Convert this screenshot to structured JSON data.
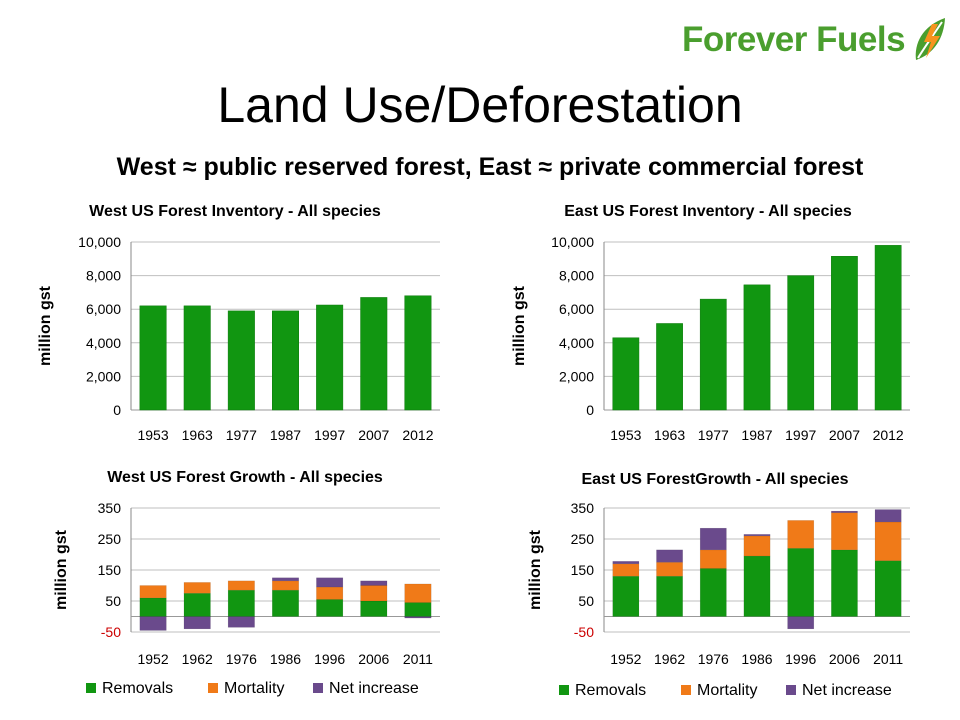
{
  "slide": {
    "logo_text": "Forever Fuels",
    "title": "Land Use/Deforestation",
    "subtitle": "West ≈ public reserved forest, East ≈ private commercial forest"
  },
  "colors": {
    "removals": "#119611",
    "mortality": "#f07a18",
    "net_increase": "#6a4a8c",
    "inventory_bar": "#119611",
    "grid": "#bfbfbf",
    "negative_tick": "#cc0000",
    "logo": "#4a9e2e"
  },
  "chart_data": [
    {
      "id": "west-inventory",
      "type": "bar",
      "title": "West US Forest Inventory - All species",
      "ylabel": "million gst",
      "xlabel": "",
      "ylim": [
        0,
        10000
      ],
      "yticks": [
        "0",
        "2,000",
        "4,000",
        "6,000",
        "8,000",
        "10,000"
      ],
      "categories": [
        "1953",
        "1963",
        "1977",
        "1987",
        "1997",
        "2007",
        "2012"
      ],
      "values": [
        6200,
        6200,
        5900,
        5900,
        6250,
        6700,
        6800
      ],
      "grid": true
    },
    {
      "id": "east-inventory",
      "type": "bar",
      "title": "East US Forest Inventory - All species",
      "ylabel": "million gst",
      "xlabel": "",
      "ylim": [
        0,
        10000
      ],
      "yticks": [
        "0",
        "2,000",
        "4,000",
        "6,000",
        "8,000",
        "10,000"
      ],
      "categories": [
        "1953",
        "1963",
        "1977",
        "1987",
        "1997",
        "2007",
        "2012"
      ],
      "values": [
        4300,
        5150,
        6600,
        7450,
        8000,
        9150,
        9800
      ],
      "grid": true
    },
    {
      "id": "west-growth",
      "type": "bar",
      "stacked": true,
      "title": "West US Forest Growth - All species",
      "ylabel": "million gst",
      "xlabel": "",
      "ylim": [
        -50,
        350
      ],
      "yticks": [
        "-50",
        "50",
        "150",
        "250",
        "350"
      ],
      "categories": [
        "1952",
        "1962",
        "1976",
        "1986",
        "1996",
        "2006",
        "2011"
      ],
      "series": [
        {
          "name": "Removals",
          "values": [
            60,
            75,
            85,
            85,
            55,
            50,
            45
          ]
        },
        {
          "name": "Mortality",
          "values": [
            40,
            35,
            30,
            30,
            40,
            50,
            60
          ]
        },
        {
          "name": "Net increase",
          "values": [
            -45,
            -40,
            -35,
            10,
            30,
            15,
            -5
          ]
        }
      ],
      "legend": "bottom",
      "grid": true
    },
    {
      "id": "east-growth",
      "type": "bar",
      "stacked": true,
      "title": "East US ForestGrowth - All species",
      "ylabel": "million gst",
      "xlabel": "",
      "ylim": [
        -50,
        350
      ],
      "yticks": [
        "-50",
        "50",
        "150",
        "250",
        "350"
      ],
      "categories": [
        "1952",
        "1962",
        "1976",
        "1986",
        "1996",
        "2006",
        "2011"
      ],
      "series": [
        {
          "name": "Removals",
          "values": [
            130,
            130,
            155,
            195,
            220,
            215,
            180
          ]
        },
        {
          "name": "Mortality",
          "values": [
            40,
            45,
            60,
            65,
            90,
            120,
            125
          ]
        },
        {
          "name": "Net increase",
          "values": [
            8,
            40,
            70,
            5,
            -40,
            5,
            40
          ]
        }
      ],
      "legend": "bottom",
      "grid": true
    }
  ]
}
